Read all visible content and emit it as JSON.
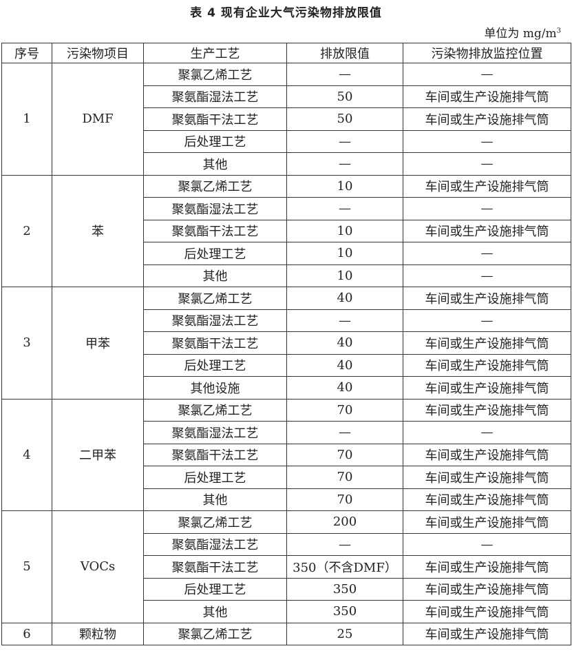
{
  "title": "表 4   现有企业大气污染物排放限值",
  "unit": {
    "label": "单位为 mg/m",
    "sup": "3"
  },
  "headers": [
    "序号",
    "污染物项目",
    "生产工艺",
    "排放限值",
    "污染物排放监控位置"
  ],
  "groups": [
    {
      "no": "1",
      "pollutant": "DMF",
      "rows": [
        [
          "聚氯乙烯工艺",
          "—",
          "—"
        ],
        [
          "聚氨酯湿法工艺",
          "50",
          "车间或生产设施排气筒"
        ],
        [
          "聚氨酯干法工艺",
          "50",
          "车间或生产设施排气筒"
        ],
        [
          "后处理工艺",
          "—",
          "—"
        ],
        [
          "其他",
          "—",
          "—"
        ]
      ]
    },
    {
      "no": "2",
      "pollutant": "苯",
      "rows": [
        [
          "聚氯乙烯工艺",
          "10",
          "车间或生产设施排气筒"
        ],
        [
          "聚氨酯湿法工艺",
          "—",
          "—"
        ],
        [
          "聚氨酯干法工艺",
          "10",
          "车间或生产设施排气筒"
        ],
        [
          "后处理工艺",
          "10",
          "—"
        ],
        [
          "其他",
          "10",
          "—"
        ]
      ]
    },
    {
      "no": "3",
      "pollutant": "甲苯",
      "rows": [
        [
          "聚氯乙烯工艺",
          "40",
          "车间或生产设施排气筒"
        ],
        [
          "聚氨酯湿法工艺",
          "—",
          "—"
        ],
        [
          "聚氨酯干法工艺",
          "40",
          "车间或生产设施排气筒"
        ],
        [
          "后处理工艺",
          "40",
          "车间或生产设施排气筒"
        ],
        [
          "其他设施",
          "40",
          "车间或生产设施排气筒"
        ]
      ]
    },
    {
      "no": "4",
      "pollutant": "二甲苯",
      "rows": [
        [
          "聚氯乙烯工艺",
          "70",
          "车间或生产设施排气筒"
        ],
        [
          "聚氨酯湿法工艺",
          "—",
          "—"
        ],
        [
          "聚氨酯干法工艺",
          "70",
          "车间或生产设施排气筒"
        ],
        [
          "后处理工艺",
          "70",
          "车间或生产设施排气筒"
        ],
        [
          "其他",
          "70",
          "车间或生产设施排气筒"
        ]
      ]
    },
    {
      "no": "5",
      "pollutant": "VOCs",
      "rows": [
        [
          "聚氯乙烯工艺",
          "200",
          "车间或生产设施排气筒"
        ],
        [
          "聚氨酯湿法工艺",
          "—",
          "—"
        ],
        [
          "聚氨酯干法工艺",
          "350（不含DMF）",
          "车间或生产设施排气筒"
        ],
        [
          "后处理工艺",
          "350",
          "车间或生产设施排气筒"
        ],
        [
          "其他",
          "350",
          "车间或生产设施排气筒"
        ]
      ]
    },
    {
      "no": "6",
      "pollutant": "颗粒物",
      "rows": [
        [
          "聚氯乙烯工艺",
          "25",
          "车间或生产设施排气筒"
        ]
      ]
    }
  ]
}
